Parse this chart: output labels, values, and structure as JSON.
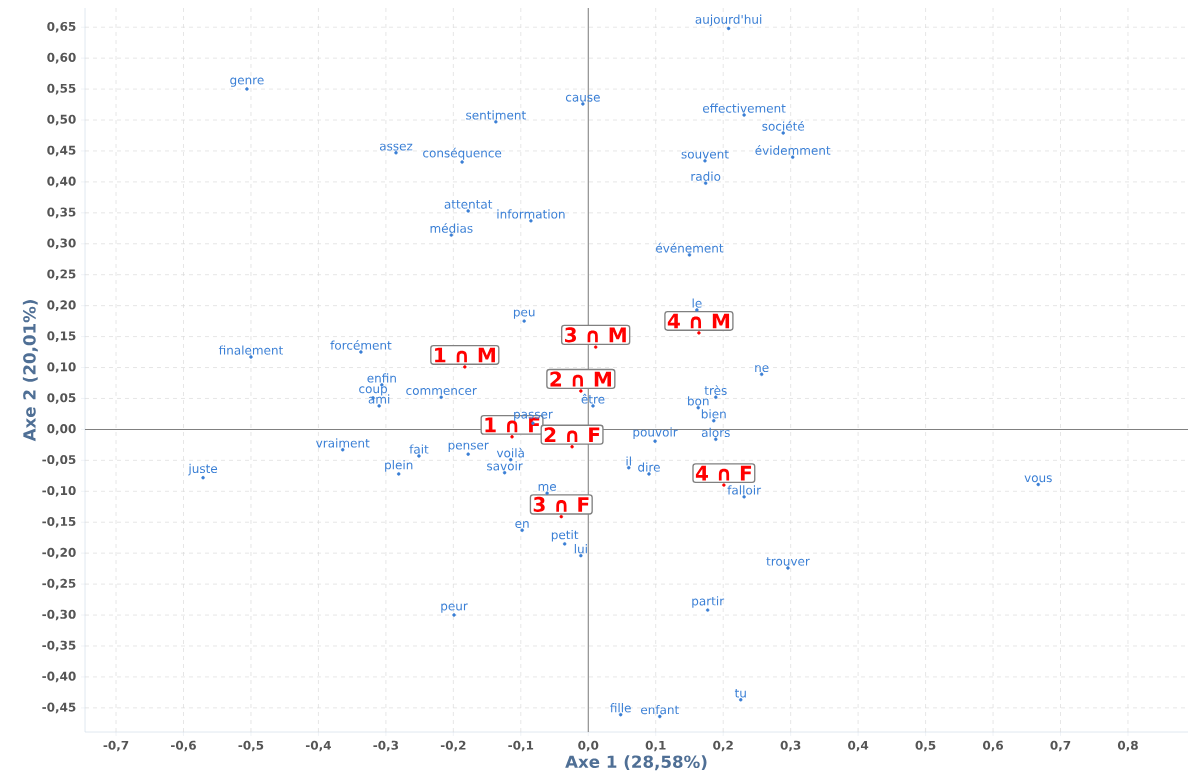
{
  "chart_data": {
    "type": "scatter",
    "xlabel": "Axe 1 (28,58%)",
    "ylabel": "Axe 2 (20,01%)",
    "marker": "circle",
    "grid": true,
    "xlim": [
      -0.746,
      0.889
    ],
    "ylim": [
      -0.489,
      0.681
    ],
    "xticks": [
      {
        "value": -0.7,
        "label": "-0,7"
      },
      {
        "value": -0.6,
        "label": "-0,6"
      },
      {
        "value": -0.5,
        "label": "-0,5"
      },
      {
        "value": -0.4,
        "label": "-0,4"
      },
      {
        "value": -0.3,
        "label": "-0,3"
      },
      {
        "value": -0.2,
        "label": "-0,2"
      },
      {
        "value": -0.1,
        "label": "-0,1"
      },
      {
        "value": 0,
        "label": "0,0"
      },
      {
        "value": 0.1,
        "label": "0,1"
      },
      {
        "value": 0.2,
        "label": "0,2"
      },
      {
        "value": 0.3,
        "label": "0,3"
      },
      {
        "value": 0.4,
        "label": "0,4"
      },
      {
        "value": 0.5,
        "label": "0,5"
      },
      {
        "value": 0.6,
        "label": "0,6"
      },
      {
        "value": 0.7,
        "label": "0,7"
      },
      {
        "value": 0.8,
        "label": "0,8"
      }
    ],
    "yticks": [
      {
        "value": -0.45,
        "label": "-0,45"
      },
      {
        "value": -0.4,
        "label": "-0,40"
      },
      {
        "value": -0.35,
        "label": "-0,35"
      },
      {
        "value": -0.3,
        "label": "-0,30"
      },
      {
        "value": -0.25,
        "label": "-0,25"
      },
      {
        "value": -0.2,
        "label": "-0,20"
      },
      {
        "value": -0.15,
        "label": "-0,15"
      },
      {
        "value": -0.1,
        "label": "-0,10"
      },
      {
        "value": -0.05,
        "label": "-0,05"
      },
      {
        "value": 0,
        "label": "0,00"
      },
      {
        "value": 0.05,
        "label": "0,05"
      },
      {
        "value": 0.1,
        "label": "0,10"
      },
      {
        "value": 0.15,
        "label": "0,15"
      },
      {
        "value": 0.2,
        "label": "0,20"
      },
      {
        "value": 0.25,
        "label": "0,25"
      },
      {
        "value": 0.3,
        "label": "0,30"
      },
      {
        "value": 0.35,
        "label": "0,35"
      },
      {
        "value": 0.4,
        "label": "0,40"
      },
      {
        "value": 0.45,
        "label": "0,45"
      },
      {
        "value": 0.5,
        "label": "0,50"
      },
      {
        "value": 0.55,
        "label": "0,55"
      },
      {
        "value": 0.6,
        "label": "0,60"
      },
      {
        "value": 0.65,
        "label": "0,65"
      }
    ],
    "annotations": [
      {
        "text": "1 ∩ M",
        "x": -0.183,
        "y": 0.101
      },
      {
        "text": "3 ∩ M",
        "x": 0.011,
        "y": 0.133
      },
      {
        "text": "4 ∩ M",
        "x": 0.164,
        "y": 0.156
      },
      {
        "text": "2 ∩ M",
        "x": -0.011,
        "y": 0.062
      },
      {
        "text": "1 ∩ F",
        "x": -0.113,
        "y": -0.012
      },
      {
        "text": "2 ∩ F",
        "x": -0.024,
        "y": -0.028
      },
      {
        "text": "4 ∩ F",
        "x": 0.201,
        "y": -0.09
      },
      {
        "text": "3 ∩ F",
        "x": -0.04,
        "y": -0.141
      }
    ],
    "series": [
      {
        "color": "#3a7fd5",
        "x": [
          0.208,
          -0.506,
          -0.008,
          0.231,
          0.289,
          -0.137,
          -0.285,
          -0.187,
          0.173,
          0.303,
          0.174,
          -0.178,
          -0.085,
          -0.203,
          0.15,
          0.161,
          -0.095,
          -0.5,
          -0.337,
          -0.306,
          -0.319,
          -0.31,
          -0.218,
          0.257,
          0.189,
          0.163,
          0.186,
          0.007,
          -0.082,
          0.099,
          0.189,
          -0.364,
          -0.251,
          -0.178,
          -0.115,
          0.06,
          0.09,
          -0.124,
          -0.571,
          -0.281,
          0.667,
          0.231,
          -0.061,
          -0.098,
          -0.035,
          -0.011,
          0.296,
          0.177,
          -0.199,
          0.226,
          0.048,
          0.106
        ],
        "values": [
          0.648,
          0.55,
          0.526,
          0.508,
          0.479,
          0.497,
          0.447,
          0.432,
          0.434,
          0.44,
          0.398,
          0.353,
          0.337,
          0.314,
          0.282,
          0.193,
          0.175,
          0.117,
          0.125,
          0.072,
          0.051,
          0.038,
          0.052,
          0.089,
          0.052,
          0.035,
          0.014,
          0.038,
          0.01,
          -0.019,
          -0.016,
          -0.033,
          -0.043,
          -0.04,
          -0.049,
          -0.062,
          -0.072,
          -0.07,
          -0.078,
          -0.072,
          -0.089,
          -0.109,
          -0.103,
          -0.163,
          -0.185,
          -0.204,
          -0.224,
          -0.292,
          -0.3,
          -0.437,
          -0.461,
          -0.464
        ],
        "value_labels": [
          "aujourd'hui",
          "genre",
          "cause",
          "effectivement",
          "société",
          "sentiment",
          "assez",
          "conséquence",
          "souvent",
          "évidemment",
          "radio",
          "attentat",
          "information",
          "médias",
          "événement",
          "le",
          "peu",
          "finalement",
          "forcément",
          "enfin",
          "coup",
          "ami",
          "commencer",
          "ne",
          "très",
          "bon",
          "bien",
          "être",
          "passer",
          "pouvoir",
          "alors",
          "vraiment",
          "fait",
          "penser",
          "voilà",
          "il",
          "dire",
          "savoir",
          "juste",
          "plein",
          "vous",
          "falloir",
          "me",
          "en",
          "petit",
          "lui",
          "trouver",
          "partir",
          "peur",
          "tu",
          "fille",
          "enfant"
        ]
      },
      {
        "color": "#ff0000",
        "x": [
          -0.183,
          0.011,
          0.164,
          -0.011,
          -0.113,
          -0.024,
          0.201,
          -0.04
        ],
        "values": [
          0.101,
          0.133,
          0.156,
          0.062,
          -0.012,
          -0.028,
          -0.09,
          -0.141
        ]
      }
    ]
  }
}
